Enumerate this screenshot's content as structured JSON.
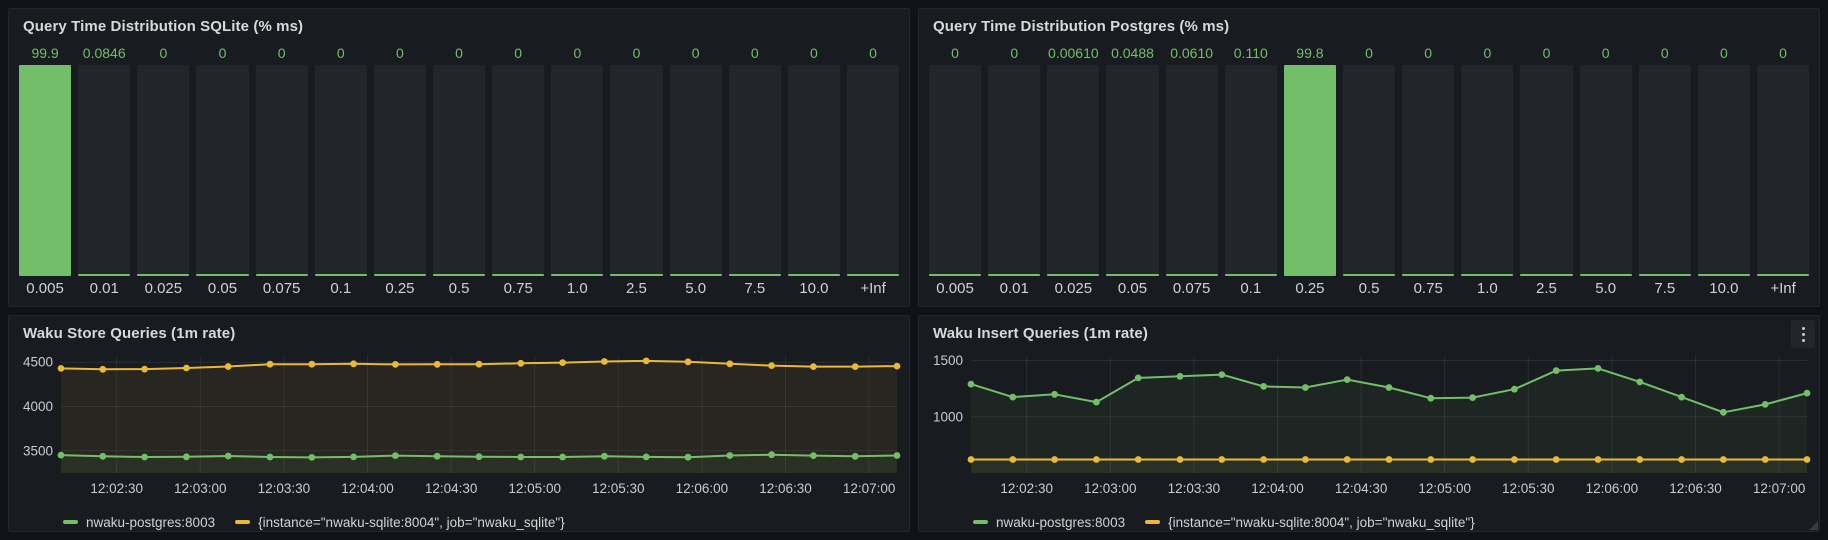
{
  "colors": {
    "page_bg": "#111217",
    "panel_bg": "#181b1f",
    "green": "#73bf69",
    "yellow": "#eab839",
    "value_label": "#73bf69",
    "axis_text": "#c9ccce",
    "column_bg": "#22262c"
  },
  "icons": {
    "panel_menu": "kebab-vertical"
  },
  "chart_data": [
    {
      "type": "bar",
      "title": "Query Time Distribution SQLite (% ms)",
      "categories": [
        "0.005",
        "0.01",
        "0.025",
        "0.05",
        "0.075",
        "0.1",
        "0.25",
        "0.5",
        "0.75",
        "1.0",
        "2.5",
        "5.0",
        "7.5",
        "10.0",
        "+Inf"
      ],
      "values": [
        99.9,
        0.0846,
        0,
        0,
        0,
        0,
        0,
        0,
        0,
        0,
        0,
        0,
        0,
        0,
        0
      ],
      "value_labels": [
        "99.9",
        "0.0846",
        "0",
        "0",
        "0",
        "0",
        "0",
        "0",
        "0",
        "0",
        "0",
        "0",
        "0",
        "0",
        "0"
      ],
      "bar_color": "#73bf69",
      "ylim": [
        0,
        100
      ],
      "xlabel": "",
      "ylabel": ""
    },
    {
      "type": "bar",
      "title": "Query Time Distribution Postgres (% ms)",
      "categories": [
        "0.005",
        "0.01",
        "0.025",
        "0.05",
        "0.075",
        "0.1",
        "0.25",
        "0.5",
        "0.75",
        "1.0",
        "2.5",
        "5.0",
        "7.5",
        "10.0",
        "+Inf"
      ],
      "values": [
        0,
        0,
        0.0061,
        0.0488,
        0.061,
        0.11,
        99.8,
        0,
        0,
        0,
        0,
        0,
        0,
        0,
        0
      ],
      "value_labels": [
        "0",
        "0",
        "0.00610",
        "0.0488",
        "0.0610",
        "0.110",
        "99.8",
        "0",
        "0",
        "0",
        "0",
        "0",
        "0",
        "0",
        "0"
      ],
      "bar_color": "#73bf69",
      "ylim": [
        0,
        100
      ],
      "xlabel": "",
      "ylabel": ""
    },
    {
      "type": "line",
      "title": "Waku Store Queries (1m rate)",
      "x_domain": [
        10,
        310
      ],
      "x_seconds": [
        10,
        25,
        40,
        55,
        70,
        85,
        100,
        115,
        130,
        145,
        160,
        175,
        190,
        205,
        220,
        235,
        250,
        265,
        280,
        295,
        310
      ],
      "tick_seconds": [
        30,
        60,
        90,
        120,
        150,
        180,
        210,
        240,
        270,
        300
      ],
      "tick_labels": [
        "12:02:30",
        "12:03:00",
        "12:03:30",
        "12:04:00",
        "12:04:30",
        "12:05:00",
        "12:05:30",
        "12:06:00",
        "12:06:30",
        "12:07:00"
      ],
      "yticks": [
        3500,
        4000,
        4500
      ],
      "ylim": [
        3250,
        4570
      ],
      "grid": true,
      "legend_position": "bottom",
      "series": [
        {
          "name": "nwaku-postgres:8003",
          "color": "#73bf69",
          "values": [
            3452,
            3438,
            3430,
            3433,
            3442,
            3430,
            3426,
            3432,
            3446,
            3440,
            3434,
            3430,
            3430,
            3440,
            3432,
            3428,
            3448,
            3456,
            3446,
            3438,
            3448
          ]
        },
        {
          "name": "{instance=\"nwaku-sqlite:8004\", job=\"nwaku_sqlite\"}",
          "color": "#eab839",
          "values": [
            4430,
            4420,
            4422,
            4435,
            4452,
            4478,
            4478,
            4482,
            4475,
            4476,
            4478,
            4488,
            4495,
            4508,
            4515,
            4505,
            4482,
            4462,
            4450,
            4450,
            4456
          ]
        }
      ]
    },
    {
      "type": "line",
      "title": "Waku Insert Queries (1m rate)",
      "x_domain": [
        10,
        310
      ],
      "x_seconds": [
        10,
        25,
        40,
        55,
        70,
        85,
        100,
        115,
        130,
        145,
        160,
        175,
        190,
        205,
        220,
        235,
        250,
        265,
        280,
        295,
        310
      ],
      "tick_seconds": [
        30,
        60,
        90,
        120,
        150,
        180,
        210,
        240,
        270,
        300
      ],
      "tick_labels": [
        "12:02:30",
        "12:03:00",
        "12:03:30",
        "12:04:00",
        "12:04:30",
        "12:05:00",
        "12:05:30",
        "12:06:00",
        "12:06:30",
        "12:07:00"
      ],
      "yticks": [
        1000,
        1500
      ],
      "ylim": [
        500,
        1540
      ],
      "grid": true,
      "legend_position": "bottom",
      "series": [
        {
          "name": "nwaku-postgres:8003",
          "color": "#73bf69",
          "values": [
            1290,
            1175,
            1200,
            1130,
            1345,
            1360,
            1375,
            1270,
            1260,
            1330,
            1260,
            1165,
            1170,
            1245,
            1410,
            1430,
            1310,
            1175,
            1040,
            1110,
            1210
          ]
        },
        {
          "name": "{instance=\"nwaku-sqlite:8004\", job=\"nwaku_sqlite\"}",
          "color": "#eab839",
          "values": [
            620,
            620,
            620,
            620,
            620,
            620,
            620,
            620,
            620,
            620,
            620,
            620,
            620,
            620,
            620,
            620,
            620,
            620,
            620,
            620,
            620
          ]
        }
      ]
    }
  ]
}
